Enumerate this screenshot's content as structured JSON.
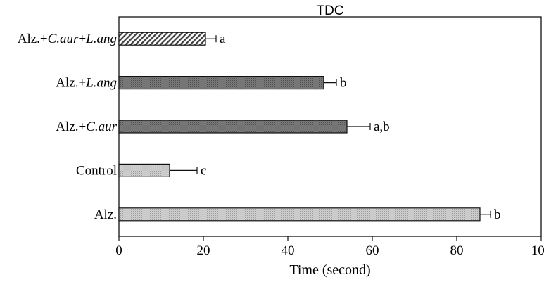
{
  "chart_data": {
    "type": "bar",
    "orientation": "horizontal",
    "title": "TDC",
    "xlabel": "Time (second)",
    "ylabel": "",
    "xlim": [
      0,
      100
    ],
    "xticks": [
      0,
      20,
      40,
      60,
      80,
      100
    ],
    "grid": false,
    "categories": [
      {
        "parts": [
          {
            "t": "Alz.+",
            "i": false
          },
          {
            "t": "C.aur",
            "i": true
          },
          {
            "t": "+",
            "i": false
          },
          {
            "t": "L.ang",
            "i": true
          }
        ]
      },
      {
        "parts": [
          {
            "t": "Alz.+",
            "i": false
          },
          {
            "t": "L.ang",
            "i": true
          }
        ]
      },
      {
        "parts": [
          {
            "t": "Alz.+",
            "i": false
          },
          {
            "t": "C.aur",
            "i": true
          }
        ]
      },
      {
        "parts": [
          {
            "t": "Control",
            "i": false
          }
        ]
      },
      {
        "parts": [
          {
            "t": "Alz.",
            "i": false
          }
        ]
      }
    ],
    "values": [
      20.5,
      48.5,
      54,
      12,
      85.5
    ],
    "errors": [
      2.5,
      3,
      5.5,
      6.5,
      2.5
    ],
    "annotations": [
      "a",
      "b",
      "a,b",
      "c",
      "b"
    ],
    "fills": [
      "diagonal",
      "dark",
      "dark",
      "light",
      "light"
    ],
    "colors": {
      "dark": "#6b6b6b",
      "light": "#c8c8c8",
      "diagonal": "#4a4a4a",
      "axis": "#111111"
    }
  }
}
